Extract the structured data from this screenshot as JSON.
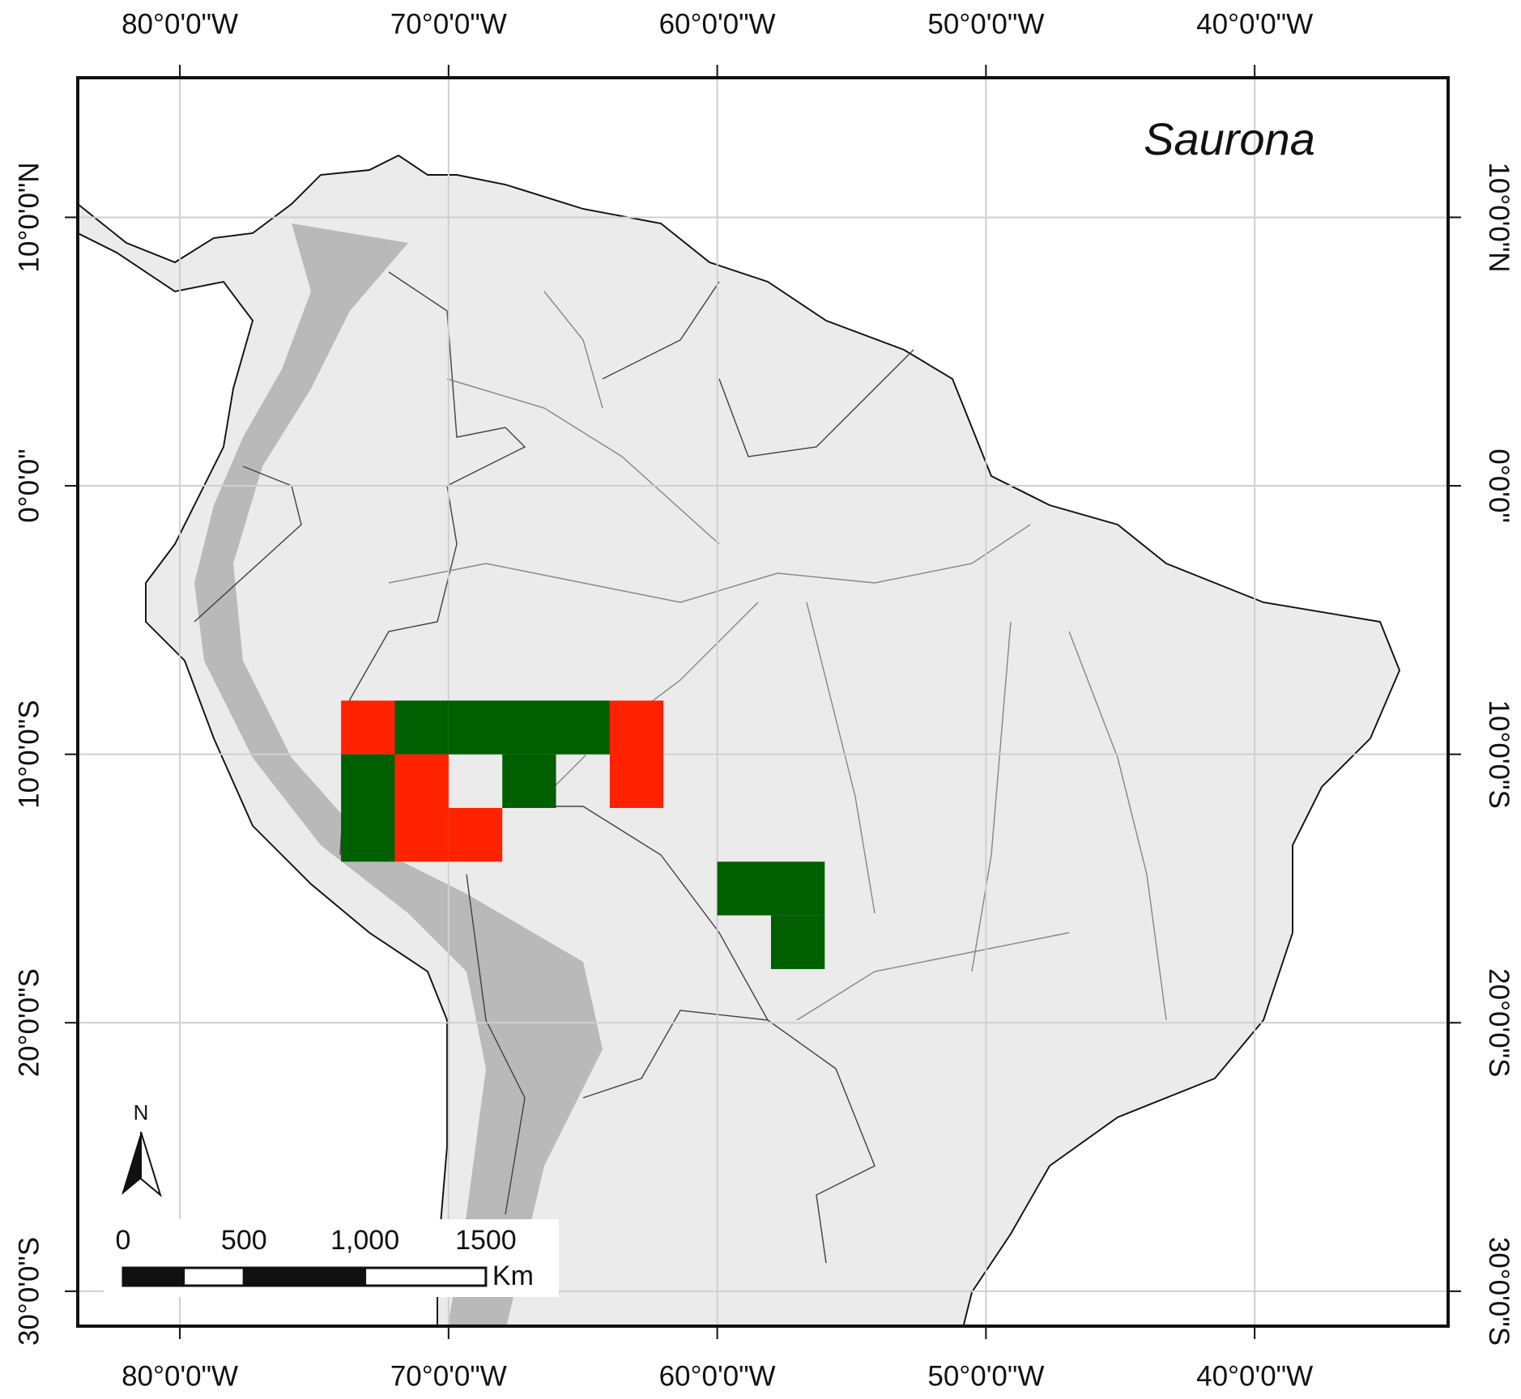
{
  "chart_data": {
    "type": "map",
    "title": "Saurona",
    "xlim": [
      -83.8,
      -32.8
    ],
    "ylim": [
      -31.3,
      15.2
    ],
    "xticks": [
      {
        "value": -80,
        "label": "80°0'0\"W"
      },
      {
        "value": -70,
        "label": "70°0'0\"W"
      },
      {
        "value": -60,
        "label": "60°0'0\"W"
      },
      {
        "value": -50,
        "label": "50°0'0\"W"
      },
      {
        "value": -40,
        "label": "40°0'0\"W"
      }
    ],
    "yticks": [
      {
        "value": 10,
        "label": "10°0'0\"N"
      },
      {
        "value": 0,
        "label": "0°0'0\""
      },
      {
        "value": -10,
        "label": "10°0'0\"S"
      },
      {
        "value": -20,
        "label": "20°0'0\"S"
      },
      {
        "value": -30,
        "label": "30°0'0\"S"
      }
    ],
    "grid": true,
    "series": [
      {
        "color": "#ff2200",
        "cells": [
          [
            -74,
            -10,
            -72,
            -8
          ],
          [
            -64,
            -12,
            -62,
            -8
          ],
          [
            -72,
            -14,
            -70,
            -10
          ],
          [
            -70,
            -14,
            -68,
            -12
          ]
        ]
      },
      {
        "color": "#005f00",
        "cells": [
          [
            -72,
            -10,
            -70,
            -8
          ],
          [
            -70,
            -10,
            -64,
            -8
          ],
          [
            -74,
            -14,
            -72,
            -10
          ],
          [
            -68,
            -12,
            -66,
            -10
          ],
          [
            -60,
            -16,
            -56,
            -14
          ],
          [
            -58,
            -18,
            -56,
            -16
          ]
        ]
      }
    ],
    "north_arrow": "N",
    "scale_bar": {
      "unit": "Km",
      "ticks": [
        0,
        500,
        {
          "value": 1000,
          "label": "1,000"
        },
        1500
      ],
      "divisions": [
        0,
        250,
        500,
        1000,
        1500
      ]
    }
  }
}
